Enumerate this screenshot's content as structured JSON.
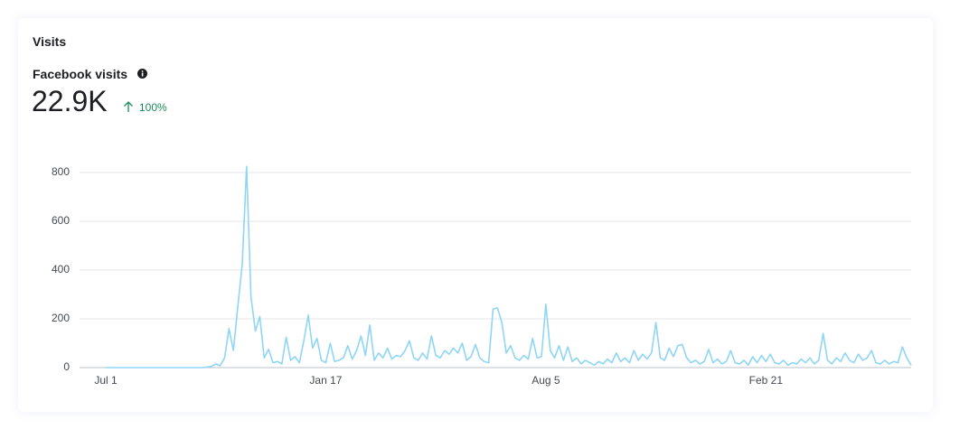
{
  "header": {
    "title": "Visits",
    "metric_label": "Facebook visits",
    "metric_value": "22.9K",
    "change": "100%"
  },
  "chart_data": {
    "type": "line",
    "categories": [
      "Jul 1",
      null,
      null,
      null,
      null,
      null,
      null,
      null,
      null,
      null,
      null,
      null,
      null,
      null,
      null,
      null,
      null,
      null,
      null,
      null,
      null,
      null,
      null,
      null,
      null,
      null,
      null,
      null,
      null,
      null,
      null,
      null,
      null,
      null,
      null,
      null,
      null,
      null,
      null,
      null,
      null,
      null,
      null,
      null,
      null,
      null,
      null,
      null,
      null,
      null,
      "Jan 17",
      null,
      null,
      null,
      null,
      null,
      null,
      null,
      null,
      null,
      null,
      null,
      null,
      null,
      null,
      null,
      null,
      null,
      null,
      null,
      null,
      null,
      null,
      null,
      null,
      null,
      null,
      null,
      null,
      null,
      null,
      null,
      null,
      null,
      null,
      null,
      null,
      null,
      null,
      null,
      null,
      null,
      null,
      null,
      null,
      null,
      null,
      null,
      null,
      null,
      "Aug 5",
      null,
      null,
      null,
      null,
      null,
      null,
      null,
      null,
      null,
      null,
      null,
      null,
      null,
      null,
      null,
      null,
      null,
      null,
      null,
      null,
      null,
      null,
      null,
      null,
      null,
      null,
      null,
      null,
      null,
      null,
      null,
      null,
      null,
      null,
      null,
      null,
      null,
      null,
      null,
      null,
      null,
      null,
      null,
      null,
      null,
      null,
      null,
      null,
      null,
      "Feb 21",
      null,
      null,
      null,
      null,
      null,
      null,
      null,
      null,
      null,
      null,
      null,
      null,
      null,
      null,
      null,
      null,
      null,
      null,
      null,
      null,
      null,
      null,
      null,
      null,
      null,
      null,
      null,
      null,
      null,
      null,
      null,
      null,
      null
    ],
    "series": [
      {
        "name": "Facebook visits",
        "color": "#8fd5f5",
        "values": [
          0,
          0,
          0,
          0,
          0,
          0,
          0,
          0,
          0,
          0,
          0,
          0,
          0,
          0,
          0,
          0,
          0,
          0,
          0,
          0,
          0,
          0,
          0,
          2,
          5,
          15,
          8,
          40,
          160,
          70,
          250,
          420,
          825,
          290,
          150,
          210,
          40,
          75,
          20,
          25,
          15,
          125,
          30,
          45,
          20,
          110,
          215,
          80,
          120,
          30,
          20,
          100,
          25,
          30,
          40,
          90,
          35,
          70,
          130,
          50,
          175,
          30,
          60,
          40,
          80,
          35,
          50,
          45,
          70,
          110,
          40,
          30,
          60,
          35,
          130,
          50,
          40,
          70,
          55,
          80,
          60,
          100,
          30,
          45,
          95,
          40,
          25,
          20,
          240,
          245,
          185,
          60,
          90,
          40,
          30,
          50,
          35,
          120,
          40,
          45,
          260,
          70,
          40,
          90,
          30,
          85,
          25,
          40,
          15,
          30,
          20,
          10,
          25,
          15,
          35,
          20,
          60,
          25,
          40,
          20,
          70,
          30,
          55,
          35,
          60,
          185,
          40,
          30,
          80,
          45,
          90,
          95,
          40,
          20,
          30,
          15,
          25,
          75,
          20,
          35,
          15,
          25,
          70,
          20,
          15,
          30,
          10,
          45,
          20,
          50,
          25,
          55,
          20,
          15,
          30,
          10,
          20,
          15,
          35,
          20,
          40,
          15,
          30,
          140,
          30,
          15,
          40,
          25,
          60,
          30,
          20,
          55,
          30,
          40,
          70,
          20,
          15,
          30,
          15,
          25,
          20,
          85,
          40,
          10
        ]
      }
    ],
    "ylim": [
      0,
      800
    ],
    "yticks": [
      0,
      200,
      400,
      600,
      800
    ],
    "grid": true
  }
}
